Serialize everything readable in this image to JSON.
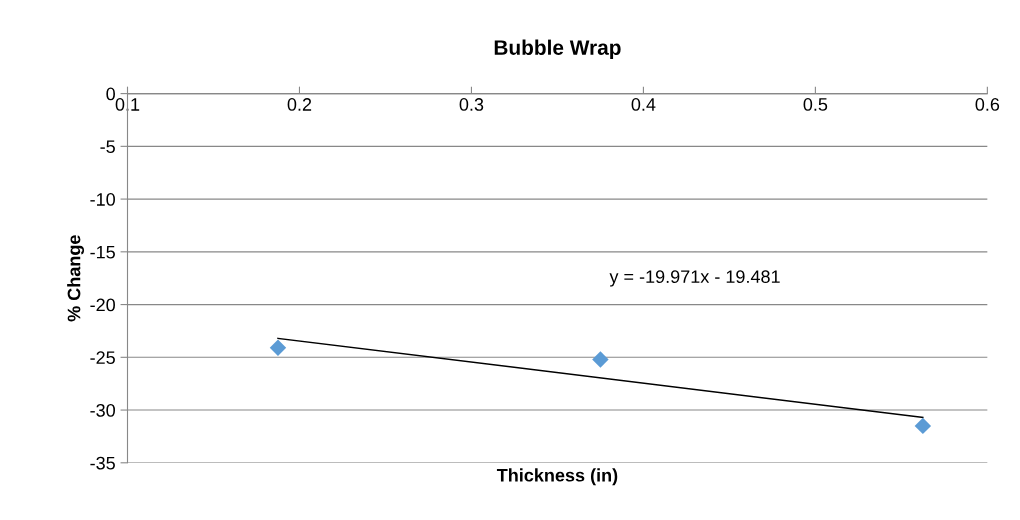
{
  "chart_data": {
    "type": "scatter",
    "title": "Bubble Wrap",
    "xlabel": "Thickness (in)",
    "ylabel": "% Change",
    "x": [
      0.1875,
      0.375,
      0.5625
    ],
    "series": [
      {
        "color": "#5b9bd5",
        "values": [
          -24.1,
          -25.2,
          -31.5
        ],
        "marker": "diamond"
      },
      {
        "type": "line",
        "color": "#000000",
        "x": [
          0.1875,
          0.5625
        ],
        "values": [
          -23.2,
          -30.7
        ],
        "marker": "none",
        "line_style": "solid"
      }
    ],
    "annotations": [
      "y = -19.971x - 19.481"
    ],
    "xlim": [
      0.1,
      0.6
    ],
    "xticks": [
      0.1,
      0.2,
      0.3,
      0.4,
      0.5,
      0.6
    ],
    "ylim": [
      -35,
      0
    ],
    "yticks": [
      -35,
      -30,
      -25,
      -20,
      -15,
      -10,
      -5,
      0
    ],
    "grid": "y",
    "legend": false
  }
}
